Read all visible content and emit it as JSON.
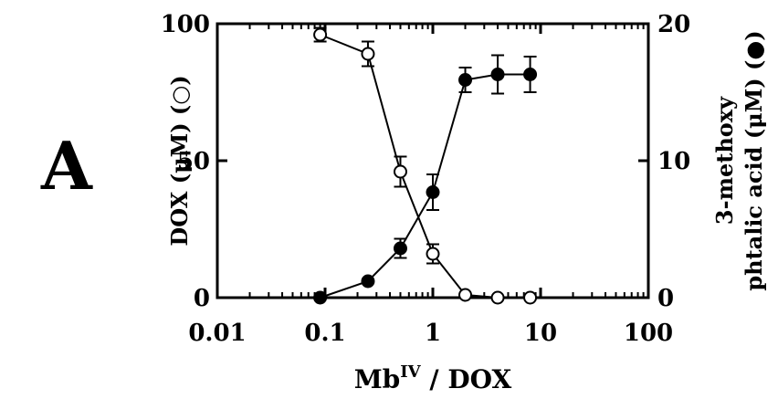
{
  "chart_data": {
    "type": "scatter",
    "panel_label": "A",
    "xlabel_main": "Mb",
    "xlabel_superscript": "IV",
    "xlabel_suffix": " / DOX",
    "x_scale": "log",
    "xlim": [
      0.01,
      100
    ],
    "x_ticks": [
      0.01,
      0.1,
      1,
      10,
      100
    ],
    "x_tick_labels": [
      "0.01",
      "0.1",
      "1",
      "10",
      "100"
    ],
    "ylabel_left": "DOX (μM) (○)",
    "ylim_left": [
      0,
      100
    ],
    "y_ticks_left": [
      0,
      50,
      100
    ],
    "y_tick_labels_left": [
      "0",
      "50",
      "100"
    ],
    "ylabel_right_line1": "3-methoxy",
    "ylabel_right_line2": "phtalic acid (μM) (●)",
    "ylim_right": [
      0,
      20
    ],
    "y_ticks_right": [
      0,
      10,
      20
    ],
    "y_tick_labels_right": [
      "0",
      "10",
      "20"
    ],
    "grid": false,
    "series": [
      {
        "marker": "open-circle",
        "axis": "left",
        "x": [
          0.09,
          0.25,
          0.5,
          1,
          2,
          4,
          8
        ],
        "y": [
          96,
          89,
          46,
          16,
          1,
          0,
          0
        ],
        "err": [
          2.5,
          4.5,
          5.5,
          3.5,
          0,
          0,
          0
        ]
      },
      {
        "marker": "filled-circle",
        "axis": "right",
        "x": [
          0.09,
          0.25,
          0.5,
          1,
          2,
          4,
          8
        ],
        "y": [
          0,
          1.2,
          3.6,
          7.7,
          15.9,
          16.3,
          16.3
        ],
        "err": [
          0,
          0,
          0.7,
          1.3,
          0.9,
          1.4,
          1.3
        ]
      }
    ]
  }
}
